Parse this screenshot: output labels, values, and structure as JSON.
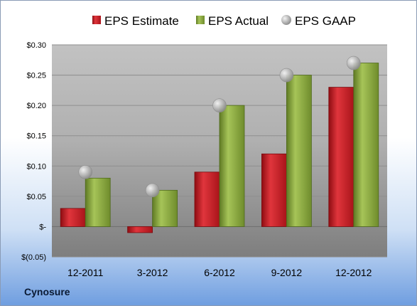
{
  "company": "Cynosure",
  "colors": {
    "estimate": "#cc1f27",
    "actual": "#8fad3e",
    "gaap": "#b9b9b9"
  },
  "chart_data": {
    "type": "bar",
    "categories": [
      "12-2011",
      "3-2012",
      "6-2012",
      "9-2012",
      "12-2012"
    ],
    "series": [
      {
        "name": "EPS Estimate",
        "kind": "bar",
        "values": [
          0.03,
          -0.01,
          0.09,
          0.12,
          0.23
        ]
      },
      {
        "name": "EPS Actual",
        "kind": "bar",
        "values": [
          0.08,
          0.06,
          0.2,
          0.25,
          0.27
        ]
      },
      {
        "name": "EPS GAAP",
        "kind": "marker",
        "values": [
          0.09,
          0.06,
          0.2,
          0.25,
          0.27
        ]
      }
    ],
    "ylim": [
      -0.05,
      0.3
    ],
    "yticks": [
      -0.05,
      0,
      0.05,
      0.1,
      0.15,
      0.2,
      0.25,
      0.3
    ],
    "ytick_labels": [
      "$(0.05)",
      "$-",
      "$0.05",
      "$0.10",
      "$0.15",
      "$0.20",
      "$0.25",
      "$0.30"
    ],
    "grid": true,
    "legend": "top"
  }
}
